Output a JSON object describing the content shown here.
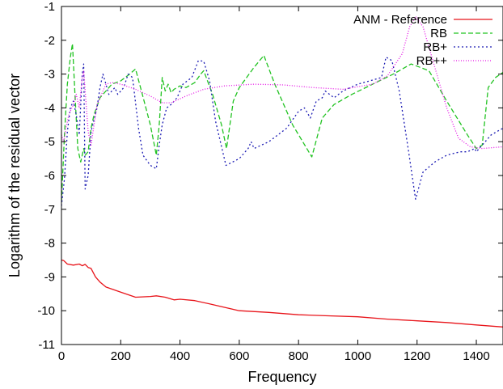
{
  "chart_data": {
    "type": "line",
    "title": "",
    "xlabel": "Frequency",
    "ylabel": "Logarithm of the residual vector",
    "xlim": [
      0,
      1490
    ],
    "ylim": [
      -11,
      -1
    ],
    "xticks": [
      0,
      200,
      400,
      600,
      800,
      1000,
      1200,
      1400
    ],
    "yticks": [
      -11,
      -10,
      -9,
      -8,
      -7,
      -6,
      -5,
      -4,
      -3,
      -2,
      -1
    ],
    "legend_position": "top-right",
    "grid": false,
    "series": [
      {
        "name": "ANM - Reference",
        "color": "#e8141a",
        "dash": "solid",
        "points": [
          [
            0,
            -8.5
          ],
          [
            8,
            -8.52
          ],
          [
            20,
            -8.62
          ],
          [
            40,
            -8.65
          ],
          [
            60,
            -8.62
          ],
          [
            70,
            -8.67
          ],
          [
            80,
            -8.63
          ],
          [
            90,
            -8.72
          ],
          [
            100,
            -8.75
          ],
          [
            115,
            -9.0
          ],
          [
            130,
            -9.15
          ],
          [
            150,
            -9.3
          ],
          [
            200,
            -9.45
          ],
          [
            250,
            -9.6
          ],
          [
            300,
            -9.58
          ],
          [
            320,
            -9.56
          ],
          [
            350,
            -9.6
          ],
          [
            380,
            -9.68
          ],
          [
            400,
            -9.66
          ],
          [
            450,
            -9.7
          ],
          [
            500,
            -9.8
          ],
          [
            550,
            -9.9
          ],
          [
            600,
            -10.0
          ],
          [
            700,
            -10.05
          ],
          [
            800,
            -10.12
          ],
          [
            900,
            -10.15
          ],
          [
            1000,
            -10.18
          ],
          [
            1100,
            -10.25
          ],
          [
            1200,
            -10.3
          ],
          [
            1300,
            -10.35
          ],
          [
            1400,
            -10.42
          ],
          [
            1490,
            -10.48
          ]
        ]
      },
      {
        "name": "RB",
        "color": "#22c322",
        "dash": "6,3",
        "points": [
          [
            0,
            -6.8
          ],
          [
            10,
            -4.8
          ],
          [
            20,
            -3.3
          ],
          [
            30,
            -2.5
          ],
          [
            37,
            -2.1
          ],
          [
            45,
            -3.5
          ],
          [
            55,
            -5.2
          ],
          [
            65,
            -5.6
          ],
          [
            75,
            -5.2
          ],
          [
            80,
            -5.4
          ],
          [
            90,
            -5.3
          ],
          [
            100,
            -4.6
          ],
          [
            110,
            -4.2
          ],
          [
            130,
            -3.7
          ],
          [
            150,
            -3.5
          ],
          [
            170,
            -3.3
          ],
          [
            200,
            -3.2
          ],
          [
            230,
            -3.0
          ],
          [
            250,
            -2.85
          ],
          [
            270,
            -3.5
          ],
          [
            300,
            -4.5
          ],
          [
            320,
            -5.4
          ],
          [
            330,
            -4.5
          ],
          [
            340,
            -3.1
          ],
          [
            350,
            -3.5
          ],
          [
            360,
            -3.3
          ],
          [
            370,
            -3.55
          ],
          [
            380,
            -3.45
          ],
          [
            400,
            -3.35
          ],
          [
            420,
            -3.4
          ],
          [
            450,
            -3.25
          ],
          [
            470,
            -3.0
          ],
          [
            480,
            -2.9
          ],
          [
            510,
            -3.6
          ],
          [
            540,
            -4.5
          ],
          [
            557,
            -5.2
          ],
          [
            580,
            -3.8
          ],
          [
            600,
            -3.4
          ],
          [
            650,
            -2.8
          ],
          [
            683,
            -2.45
          ],
          [
            720,
            -3.3
          ],
          [
            780,
            -4.5
          ],
          [
            845,
            -5.45
          ],
          [
            880,
            -4.3
          ],
          [
            920,
            -3.9
          ],
          [
            980,
            -3.6
          ],
          [
            1050,
            -3.3
          ],
          [
            1120,
            -3.0
          ],
          [
            1180,
            -2.7
          ],
          [
            1240,
            -2.9
          ],
          [
            1300,
            -3.8
          ],
          [
            1370,
            -4.8
          ],
          [
            1400,
            -5.2
          ],
          [
            1420,
            -5.1
          ],
          [
            1440,
            -3.4
          ],
          [
            1465,
            -3.1
          ],
          [
            1490,
            -2.95
          ]
        ]
      },
      {
        "name": "RB+",
        "color": "#1c1cb4",
        "dash": "2,3",
        "points": [
          [
            0,
            -6.9
          ],
          [
            10,
            -6.1
          ],
          [
            20,
            -4.7
          ],
          [
            30,
            -4.0
          ],
          [
            40,
            -3.8
          ],
          [
            50,
            -4.2
          ],
          [
            60,
            -4.8
          ],
          [
            70,
            -3.0
          ],
          [
            75,
            -2.7
          ],
          [
            80,
            -6.4
          ],
          [
            90,
            -6.0
          ],
          [
            100,
            -4.7
          ],
          [
            120,
            -4.0
          ],
          [
            130,
            -3.4
          ],
          [
            140,
            -3.0
          ],
          [
            150,
            -3.3
          ],
          [
            160,
            -3.6
          ],
          [
            170,
            -3.5
          ],
          [
            180,
            -3.4
          ],
          [
            190,
            -3.6
          ],
          [
            210,
            -3.4
          ],
          [
            225,
            -3.0
          ],
          [
            240,
            -3.1
          ],
          [
            260,
            -4.6
          ],
          [
            275,
            -5.4
          ],
          [
            300,
            -5.7
          ],
          [
            320,
            -5.8
          ],
          [
            330,
            -5.1
          ],
          [
            340,
            -4.5
          ],
          [
            355,
            -4.0
          ],
          [
            370,
            -3.9
          ],
          [
            390,
            -3.7
          ],
          [
            410,
            -3.3
          ],
          [
            440,
            -3.1
          ],
          [
            462,
            -2.6
          ],
          [
            480,
            -2.62
          ],
          [
            500,
            -3.2
          ],
          [
            520,
            -4.4
          ],
          [
            555,
            -5.7
          ],
          [
            600,
            -5.5
          ],
          [
            630,
            -5.2
          ],
          [
            640,
            -5.0
          ],
          [
            650,
            -5.2
          ],
          [
            700,
            -5.0
          ],
          [
            760,
            -4.6
          ],
          [
            800,
            -4.1
          ],
          [
            820,
            -4.0
          ],
          [
            840,
            -4.3
          ],
          [
            860,
            -3.8
          ],
          [
            880,
            -3.7
          ],
          [
            890,
            -3.5
          ],
          [
            920,
            -3.7
          ],
          [
            950,
            -3.5
          ],
          [
            1000,
            -3.3
          ],
          [
            1040,
            -3.2
          ],
          [
            1080,
            -3.1
          ],
          [
            1095,
            -2.5
          ],
          [
            1115,
            -2.6
          ],
          [
            1140,
            -3.5
          ],
          [
            1170,
            -5.2
          ],
          [
            1195,
            -6.7
          ],
          [
            1220,
            -5.9
          ],
          [
            1260,
            -5.6
          ],
          [
            1300,
            -5.4
          ],
          [
            1345,
            -5.3
          ],
          [
            1370,
            -5.3
          ],
          [
            1395,
            -5.2
          ],
          [
            1400,
            -5.3
          ],
          [
            1420,
            -5.1
          ],
          [
            1450,
            -4.8
          ],
          [
            1490,
            -4.6
          ]
        ]
      },
      {
        "name": "RB++",
        "color": "#e614e6",
        "dash": "1,2",
        "points": [
          [
            0,
            -4.8
          ],
          [
            8,
            -5.0
          ],
          [
            15,
            -4.6
          ],
          [
            25,
            -4.2
          ],
          [
            35,
            -4.0
          ],
          [
            40,
            -3.9
          ],
          [
            50,
            -3.6
          ],
          [
            60,
            -4.0
          ],
          [
            70,
            -3.1
          ],
          [
            75,
            -2.9
          ],
          [
            80,
            -3.5
          ],
          [
            90,
            -4.7
          ],
          [
            100,
            -5.1
          ],
          [
            110,
            -4.5
          ],
          [
            120,
            -3.9
          ],
          [
            135,
            -3.6
          ],
          [
            150,
            -3.3
          ],
          [
            170,
            -3.25
          ],
          [
            200,
            -3.3
          ],
          [
            250,
            -3.45
          ],
          [
            300,
            -3.65
          ],
          [
            340,
            -3.85
          ],
          [
            370,
            -3.85
          ],
          [
            420,
            -3.65
          ],
          [
            480,
            -3.45
          ],
          [
            550,
            -3.35
          ],
          [
            650,
            -3.3
          ],
          [
            750,
            -3.32
          ],
          [
            850,
            -3.4
          ],
          [
            950,
            -3.45
          ],
          [
            1050,
            -3.3
          ],
          [
            1100,
            -3.05
          ],
          [
            1150,
            -2.4
          ],
          [
            1175,
            -1.6
          ],
          [
            1195,
            -1.3
          ],
          [
            1220,
            -1.6
          ],
          [
            1260,
            -2.8
          ],
          [
            1300,
            -4.0
          ],
          [
            1340,
            -4.9
          ],
          [
            1380,
            -5.15
          ],
          [
            1420,
            -5.2
          ],
          [
            1490,
            -5.15
          ]
        ]
      }
    ]
  }
}
